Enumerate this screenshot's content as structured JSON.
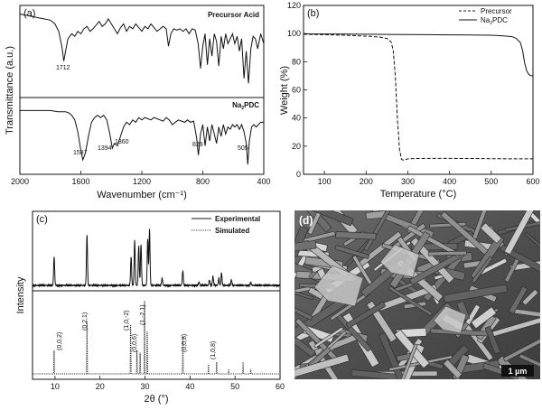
{
  "chart_data": [
    {
      "panel": "(a)",
      "type": "line",
      "xlabel": "Wavenumber (cm⁻¹)",
      "ylabel": "Transmittance (a.u.)",
      "xlim": [
        2000,
        400
      ],
      "x_ticks": [
        "2000",
        "1600",
        "1200",
        "800",
        "400"
      ],
      "series": [
        {
          "name": "Precursor Acid",
          "x": [
            2000,
            1960,
            1920,
            1880,
            1840,
            1800,
            1770,
            1745,
            1725,
            1712,
            1700,
            1685,
            1660,
            1640,
            1620,
            1600,
            1580,
            1560,
            1540,
            1520,
            1500,
            1480,
            1460,
            1440,
            1420,
            1400,
            1380,
            1360,
            1340,
            1320,
            1300,
            1280,
            1260,
            1240,
            1220,
            1200,
            1180,
            1160,
            1140,
            1120,
            1100,
            1080,
            1060,
            1040,
            1025,
            1010,
            990,
            970,
            950,
            930,
            910,
            890,
            870,
            850,
            830,
            815,
            800,
            785,
            770,
            755,
            740,
            725,
            710,
            695,
            680,
            665,
            650,
            635,
            620,
            605,
            590,
            575,
            560,
            545,
            530,
            515,
            500,
            485,
            470,
            455,
            440,
            420,
            400
          ],
          "y": [
            96,
            95,
            94,
            93,
            92,
            91,
            88,
            82,
            70,
            58,
            66,
            76,
            80,
            78,
            82,
            80,
            84,
            86,
            82,
            84,
            87,
            90,
            86,
            88,
            92,
            88,
            84,
            80,
            85,
            88,
            82,
            86,
            84,
            88,
            85,
            82,
            86,
            84,
            88,
            85,
            82,
            84,
            86,
            84,
            70,
            80,
            84,
            83,
            84,
            82,
            84,
            80,
            84,
            83,
            72,
            52,
            70,
            80,
            55,
            76,
            62,
            80,
            74,
            54,
            78,
            68,
            80,
            72,
            76,
            80,
            72,
            78,
            66,
            76,
            44,
            66,
            40,
            68,
            78,
            76,
            68,
            80,
            72
          ]
        },
        {
          "name": "Na2PDC",
          "x": [
            2000,
            1950,
            1900,
            1850,
            1800,
            1750,
            1700,
            1680,
            1660,
            1640,
            1620,
            1600,
            1587,
            1570,
            1550,
            1530,
            1510,
            1490,
            1470,
            1450,
            1430,
            1410,
            1394,
            1380,
            1360,
            1340,
            1320,
            1300,
            1280,
            1260,
            1240,
            1220,
            1200,
            1180,
            1160,
            1140,
            1120,
            1100,
            1080,
            1060,
            1040,
            1020,
            1000,
            980,
            960,
            940,
            920,
            900,
            880,
            860,
            840,
            829,
            815,
            800,
            785,
            770,
            755,
            740,
            725,
            710,
            695,
            680,
            665,
            650,
            635,
            620,
            605,
            590,
            575,
            560,
            545,
            530,
            515,
            505,
            495,
            480,
            465,
            450,
            435,
            420,
            400
          ],
          "y": [
            92,
            92,
            92,
            92,
            92,
            91,
            91,
            90,
            88,
            84,
            74,
            58,
            50,
            56,
            70,
            82,
            86,
            88,
            86,
            88,
            84,
            72,
            60,
            64,
            62,
            70,
            78,
            82,
            80,
            84,
            82,
            86,
            84,
            86,
            85,
            84,
            86,
            85,
            84,
            83,
            86,
            84,
            80,
            82,
            84,
            83,
            82,
            84,
            82,
            83,
            68,
            54,
            72,
            80,
            62,
            78,
            66,
            80,
            72,
            64,
            78,
            70,
            80,
            72,
            78,
            76,
            80,
            78,
            80,
            76,
            80,
            74,
            64,
            46,
            66,
            78,
            80,
            78,
            80,
            82,
            82
          ]
        }
      ],
      "annotations": [
        "1712",
        "1587",
        "1394",
        "1360",
        "829",
        "505"
      ]
    },
    {
      "panel": "(b)",
      "type": "line",
      "xlabel": "Temperature (°C)",
      "ylabel": "Weight (%)",
      "xlim": [
        50,
        600
      ],
      "ylim": [
        0,
        120
      ],
      "x_ticks": [
        "100",
        "200",
        "300",
        "400",
        "500",
        "600"
      ],
      "y_ticks": [
        "0",
        "20",
        "40",
        "60",
        "80",
        "100",
        "120"
      ],
      "legend_position": "top-right",
      "series": [
        {
          "name": "Precursor",
          "style": "dashed",
          "x": [
            50,
            100,
            150,
            200,
            230,
            250,
            260,
            265,
            270,
            275,
            280,
            285,
            290,
            295,
            300,
            320,
            350,
            400,
            450,
            500,
            550,
            600
          ],
          "y": [
            99.5,
            99.2,
            98.8,
            98.2,
            97.6,
            96.5,
            94,
            88,
            70,
            40,
            18,
            10.5,
            10,
            10.5,
            11,
            11.2,
            11.3,
            11.3,
            11.2,
            11.1,
            11,
            11
          ]
        },
        {
          "name": "Na2PDC",
          "style": "solid",
          "x": [
            50,
            100,
            150,
            200,
            250,
            300,
            350,
            400,
            450,
            500,
            530,
            550,
            560,
            570,
            575,
            580,
            585,
            590,
            595,
            600
          ],
          "y": [
            99.8,
            99.7,
            99.6,
            99.5,
            99.4,
            99.3,
            99.2,
            99.1,
            99,
            98.8,
            98.4,
            97.8,
            96.6,
            93.5,
            88,
            79,
            73.5,
            71,
            70,
            70
          ]
        }
      ]
    },
    {
      "panel": "(c)",
      "type": "line",
      "xlabel": "2θ (°)",
      "ylabel": "Intensity",
      "xlim": [
        5,
        60
      ],
      "x_ticks": [
        "10",
        "20",
        "30",
        "40",
        "50",
        "60"
      ],
      "legend_position": "top-right",
      "series": [
        {
          "name": "Experimental",
          "style": "solid",
          "x": [
            9.8,
            17.1,
            26.9,
            27.7,
            28.6,
            29.1,
            30.6,
            31.0,
            33.8,
            38.4,
            42.0,
            44.3,
            45.1,
            46.4,
            47.0,
            49.2,
            53.5
          ],
          "y": [
            32,
            56,
            32,
            50,
            44,
            46,
            52,
            62,
            8,
            16,
            4,
            6,
            10,
            8,
            14,
            6,
            3
          ]
        },
        {
          "name": "Simulated",
          "style": "dotted",
          "x": [
            9.8,
            17.1,
            26.8,
            28.2,
            28.9,
            29.9,
            30.5,
            38.4,
            44.1,
            45.9,
            48.6,
            51.8,
            53.5
          ],
          "y": [
            20,
            45,
            42,
            20,
            18,
            62,
            36,
            32,
            8,
            10,
            4,
            10,
            4
          ]
        }
      ],
      "annotations": [
        "(0,0,2)",
        "(0,2,1)",
        "(1,0,-2)",
        "(0,0,6)",
        "(1,-2,1)",
        "(0,0,8)",
        "(1,0,8)"
      ]
    }
  ],
  "panel_d": {
    "label": "(d)",
    "scale_bar": "1 µm"
  }
}
